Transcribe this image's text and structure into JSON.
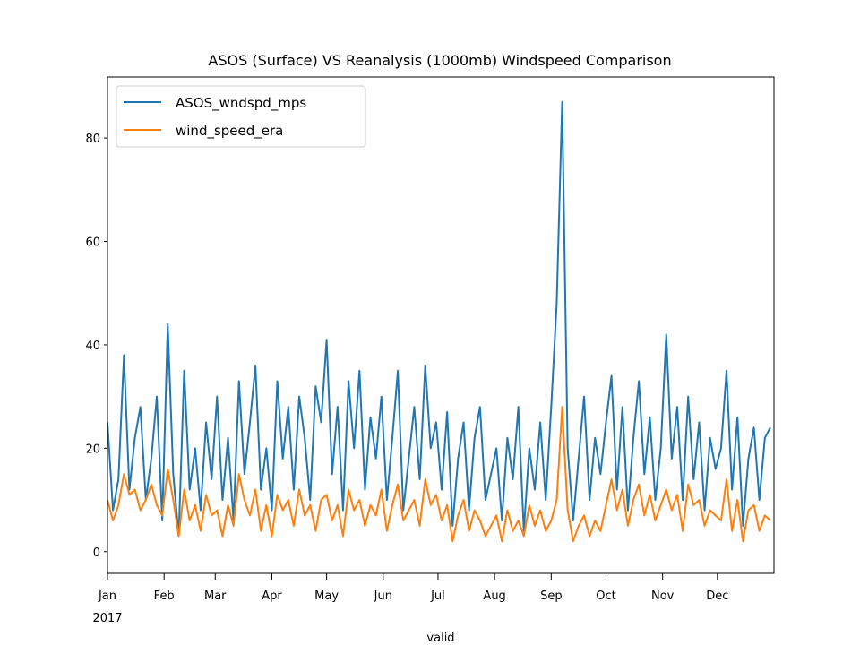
{
  "chart_data": {
    "type": "line",
    "title": "ASOS (Surface) VS Reanalysis (1000mb) Windspeed Comparison",
    "x_label": "valid",
    "year_label": "2017",
    "x": [
      0,
      3,
      6,
      9,
      12,
      15,
      18,
      21,
      24,
      27,
      30,
      33,
      36,
      39,
      42,
      45,
      48,
      51,
      54,
      57,
      60,
      63,
      66,
      69,
      72,
      75,
      78,
      81,
      84,
      87,
      90,
      93,
      96,
      99,
      102,
      105,
      108,
      111,
      114,
      117,
      120,
      123,
      126,
      129,
      132,
      135,
      138,
      141,
      144,
      147,
      150,
      153,
      156,
      159,
      162,
      165,
      168,
      171,
      174,
      177,
      180,
      183,
      186,
      189,
      192,
      195,
      198,
      201,
      204,
      207,
      210,
      213,
      216,
      219,
      222,
      225,
      228,
      231,
      234,
      237,
      240,
      243,
      246,
      249,
      252,
      255,
      258,
      261,
      264,
      267,
      270,
      273,
      276,
      279,
      282,
      285,
      288,
      291,
      294,
      297,
      300,
      303,
      306,
      309,
      312,
      315,
      318,
      321,
      324,
      327,
      330,
      333,
      336,
      339,
      342,
      345,
      348,
      351,
      354,
      357,
      360,
      363
    ],
    "series": [
      {
        "name": "ASOS_wndspd_mps",
        "color": "#1f77b4",
        "values": [
          25,
          8,
          14,
          38,
          12,
          22,
          28,
          10,
          18,
          30,
          6,
          44,
          15,
          3,
          35,
          12,
          20,
          8,
          25,
          14,
          30,
          10,
          22,
          6,
          33,
          15,
          25,
          36,
          12,
          20,
          8,
          33,
          18,
          28,
          12,
          30,
          22,
          10,
          32,
          25,
          41,
          15,
          28,
          8,
          33,
          20,
          35,
          12,
          26,
          18,
          30,
          10,
          22,
          35,
          8,
          18,
          28,
          14,
          36,
          20,
          25,
          12,
          27,
          5,
          18,
          25,
          8,
          22,
          28,
          10,
          15,
          20,
          6,
          22,
          14,
          28,
          4,
          20,
          12,
          25,
          10,
          28,
          48,
          87,
          20,
          6,
          18,
          30,
          10,
          22,
          15,
          25,
          34,
          12,
          28,
          8,
          22,
          33,
          15,
          26,
          10,
          20,
          42,
          18,
          28,
          10,
          30,
          14,
          25,
          8,
          22,
          16,
          20,
          35,
          12,
          26,
          5,
          18,
          24,
          10,
          22,
          24
        ]
      },
      {
        "name": "wind_speed_era",
        "color": "#ff7f0e",
        "values": [
          10,
          6,
          9,
          15,
          11,
          12,
          8,
          10,
          13,
          9,
          7,
          16,
          10,
          3,
          12,
          6,
          9,
          4,
          11,
          7,
          8,
          3,
          9,
          5,
          15,
          10,
          7,
          12,
          4,
          9,
          3,
          11,
          8,
          10,
          5,
          12,
          7,
          9,
          4,
          10,
          11,
          6,
          9,
          3,
          12,
          8,
          10,
          5,
          9,
          7,
          12,
          4,
          9,
          13,
          6,
          8,
          10,
          5,
          14,
          9,
          11,
          6,
          9,
          2,
          7,
          10,
          4,
          8,
          6,
          3,
          5,
          7,
          2,
          8,
          4,
          6,
          3,
          9,
          5,
          8,
          4,
          6,
          10,
          28,
          8,
          2,
          5,
          7,
          3,
          6,
          4,
          9,
          14,
          8,
          12,
          5,
          10,
          13,
          7,
          11,
          6,
          9,
          12,
          8,
          11,
          4,
          13,
          9,
          10,
          5,
          8,
          7,
          6,
          14,
          4,
          10,
          2,
          8,
          9,
          4,
          7,
          6
        ]
      }
    ],
    "xlim": [
      0,
      365
    ],
    "xticks": [
      {
        "value": 0,
        "label": "Jan"
      },
      {
        "value": 31,
        "label": "Feb"
      },
      {
        "value": 59,
        "label": "Mar"
      },
      {
        "value": 90,
        "label": "Apr"
      },
      {
        "value": 120,
        "label": "May"
      },
      {
        "value": 151,
        "label": "Jun"
      },
      {
        "value": 181,
        "label": "Jul"
      },
      {
        "value": 212,
        "label": "Aug"
      },
      {
        "value": 243,
        "label": "Sep"
      },
      {
        "value": 273,
        "label": "Oct"
      },
      {
        "value": 304,
        "label": "Nov"
      },
      {
        "value": 334,
        "label": "Dec"
      }
    ],
    "ylim": [
      -4.2,
      91.8
    ],
    "yticks": [
      0,
      20,
      40,
      60,
      80
    ],
    "legend": "upper left"
  }
}
